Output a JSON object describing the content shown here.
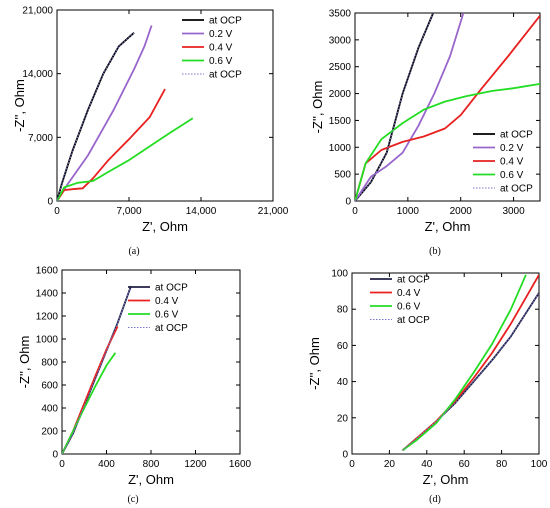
{
  "chart_data": [
    {
      "panel": "(a)",
      "type": "line",
      "xlabel": "Z', Ohm",
      "ylabel": "-Z'', Ohm",
      "xlim": [
        0,
        21000
      ],
      "ylim": [
        0,
        21000
      ],
      "xticks": [
        "0",
        "7,000",
        "14,000",
        "21,000"
      ],
      "xtick_values": [
        0,
        7000,
        14000,
        21000
      ],
      "yticks": [
        "0",
        "7,000",
        "14,000",
        "21,000"
      ],
      "ytick_values": [
        0,
        7000,
        14000,
        21000
      ],
      "legend_position": "top-right",
      "series": [
        {
          "name": "at OCP",
          "color": "#000000",
          "dash": "solid",
          "x": [
            0,
            500,
            1500,
            3000,
            4500,
            6000,
            7500
          ],
          "y": [
            0,
            2000,
            5500,
            10000,
            14000,
            17000,
            18500
          ]
        },
        {
          "name": "0.2 V",
          "color": "#9966CC",
          "dash": "solid",
          "x": [
            0,
            1000,
            3000,
            5500,
            7500,
            8500,
            9200
          ],
          "y": [
            0,
            1800,
            5000,
            10000,
            14500,
            17000,
            19300
          ]
        },
        {
          "name": "0.4 V",
          "color": "#E82020",
          "dash": "solid",
          "x": [
            0,
            700,
            1500,
            2500,
            3500,
            5000,
            7000,
            9000,
            10500
          ],
          "y": [
            0,
            1200,
            1300,
            1400,
            2500,
            4500,
            6800,
            9200,
            12300
          ]
        },
        {
          "name": "0.6 V",
          "color": "#22DD22",
          "dash": "solid",
          "x": [
            0,
            700,
            2000,
            3500,
            5000,
            7000,
            9000,
            11000,
            13200
          ],
          "y": [
            0,
            1500,
            2000,
            2200,
            3200,
            4500,
            6000,
            7500,
            9100
          ]
        },
        {
          "name": "at OCP",
          "color": "#7777cc",
          "dash": "dotted",
          "x": [
            0,
            500,
            1500,
            3000,
            4500,
            6000,
            7500
          ],
          "y": [
            0,
            2000,
            5500,
            10000,
            14000,
            17000,
            18500
          ]
        }
      ]
    },
    {
      "panel": "(b)",
      "type": "line",
      "xlabel": "Z', Ohm",
      "ylabel": "-Z'', Ohm",
      "xlim": [
        0,
        3500
      ],
      "ylim": [
        0,
        3500
      ],
      "xticks": [
        "0",
        "1000",
        "2000",
        "3000"
      ],
      "xtick_values": [
        0,
        1000,
        2000,
        3000
      ],
      "yticks": [
        "0",
        "500",
        "1000",
        "1500",
        "2000",
        "2500",
        "3000",
        "3500"
      ],
      "ytick_values": [
        0,
        500,
        1000,
        1500,
        2000,
        2500,
        3000,
        3500
      ],
      "legend_position": "bottom-right",
      "series": [
        {
          "name": "at OCP",
          "color": "#000000",
          "dash": "solid",
          "x": [
            0,
            300,
            600,
            900,
            1200,
            1480
          ],
          "y": [
            0,
            350,
            900,
            2000,
            2850,
            3500
          ]
        },
        {
          "name": "0.2 V",
          "color": "#9966CC",
          "dash": "solid",
          "x": [
            0,
            300,
            600,
            900,
            1200,
            1500,
            1800,
            2050
          ],
          "y": [
            0,
            450,
            650,
            900,
            1400,
            2000,
            2700,
            3500
          ]
        },
        {
          "name": "0.4 V",
          "color": "#E82020",
          "dash": "solid",
          "x": [
            0,
            200,
            500,
            900,
            1300,
            1700,
            2000,
            2400,
            2900,
            3500
          ],
          "y": [
            0,
            700,
            950,
            1100,
            1200,
            1350,
            1600,
            2100,
            2700,
            3450
          ]
        },
        {
          "name": "0.6 V",
          "color": "#22DD22",
          "dash": "solid",
          "x": [
            0,
            200,
            500,
            900,
            1300,
            1700,
            2100,
            2600,
            3000,
            3500
          ],
          "y": [
            0,
            700,
            1150,
            1450,
            1700,
            1850,
            1950,
            2050,
            2100,
            2180
          ]
        },
        {
          "name": "at OCP",
          "color": "#7777cc",
          "dash": "dotted",
          "x": [
            0,
            300,
            600,
            900,
            1200,
            1480
          ],
          "y": [
            0,
            350,
            900,
            2000,
            2850,
            3500
          ]
        }
      ]
    },
    {
      "panel": "(c)",
      "type": "line",
      "xlabel": "Z', Ohm",
      "ylabel": "-Z'', Ohm",
      "xlim": [
        0,
        1600
      ],
      "ylim": [
        0,
        1600
      ],
      "xticks": [
        "0",
        "400",
        "800",
        "1200",
        "1600"
      ],
      "xtick_values": [
        0,
        400,
        800,
        1200,
        1600
      ],
      "yticks": [
        "0",
        "200",
        "400",
        "600",
        "800",
        "1000",
        "1200",
        "1400",
        "1600"
      ],
      "ytick_values": [
        0,
        200,
        400,
        600,
        800,
        1000,
        1200,
        1400,
        1600
      ],
      "legend_position": "top-right",
      "series": [
        {
          "name": "at OCP",
          "color": "#222244",
          "dash": "solid",
          "x": [
            0,
            100,
            200,
            300,
            400,
            500,
            620
          ],
          "y": [
            0,
            180,
            420,
            660,
            900,
            1140,
            1460
          ]
        },
        {
          "name": "0.4 V",
          "color": "#E82020",
          "dash": "solid",
          "x": [
            0,
            100,
            200,
            300,
            400,
            500
          ],
          "y": [
            0,
            200,
            440,
            680,
            910,
            1110
          ]
        },
        {
          "name": "0.6 V",
          "color": "#22DD22",
          "dash": "solid",
          "x": [
            0,
            100,
            200,
            300,
            400,
            480
          ],
          "y": [
            0,
            200,
            400,
            590,
            770,
            880
          ]
        },
        {
          "name": "at OCP",
          "color": "#7777cc",
          "dash": "dotted",
          "x": [
            0,
            100,
            200,
            300,
            400,
            500,
            620
          ],
          "y": [
            0,
            180,
            420,
            660,
            900,
            1140,
            1460
          ]
        }
      ]
    },
    {
      "panel": "(d)",
      "type": "line",
      "xlabel": "Z', Ohm",
      "ylabel": "-Z'', Ohm",
      "xlim": [
        0,
        100
      ],
      "ylim": [
        0,
        100
      ],
      "xticks": [
        "0",
        "20",
        "40",
        "60",
        "80",
        "100"
      ],
      "xtick_values": [
        0,
        20,
        40,
        60,
        80,
        100
      ],
      "yticks": [
        "0",
        "20",
        "40",
        "60",
        "80",
        "100"
      ],
      "ytick_values": [
        0,
        20,
        40,
        60,
        80,
        100
      ],
      "legend_position": "top-left",
      "series": [
        {
          "name": "at OCP",
          "color": "#222244",
          "dash": "solid",
          "x": [
            27,
            35,
            45,
            55,
            65,
            75,
            85,
            100
          ],
          "y": [
            2,
            9,
            18,
            28,
            40,
            52,
            65,
            89
          ]
        },
        {
          "name": "0.4 V",
          "color": "#E82020",
          "dash": "solid",
          "x": [
            27,
            35,
            45,
            55,
            65,
            75,
            85,
            100
          ],
          "y": [
            2,
            9,
            18,
            29,
            42,
            56,
            72,
            99
          ]
        },
        {
          "name": "0.6 V",
          "color": "#22DD22",
          "dash": "solid",
          "x": [
            27,
            35,
            45,
            55,
            65,
            75,
            85,
            93
          ],
          "y": [
            2,
            8,
            17,
            30,
            45,
            61,
            80,
            99
          ]
        },
        {
          "name": "at OCP",
          "color": "#7777cc",
          "dash": "dotted",
          "x": [
            27,
            35,
            45,
            55,
            65,
            75,
            85,
            100
          ],
          "y": [
            2,
            9,
            18,
            28,
            40,
            52,
            65,
            89
          ]
        }
      ]
    }
  ]
}
